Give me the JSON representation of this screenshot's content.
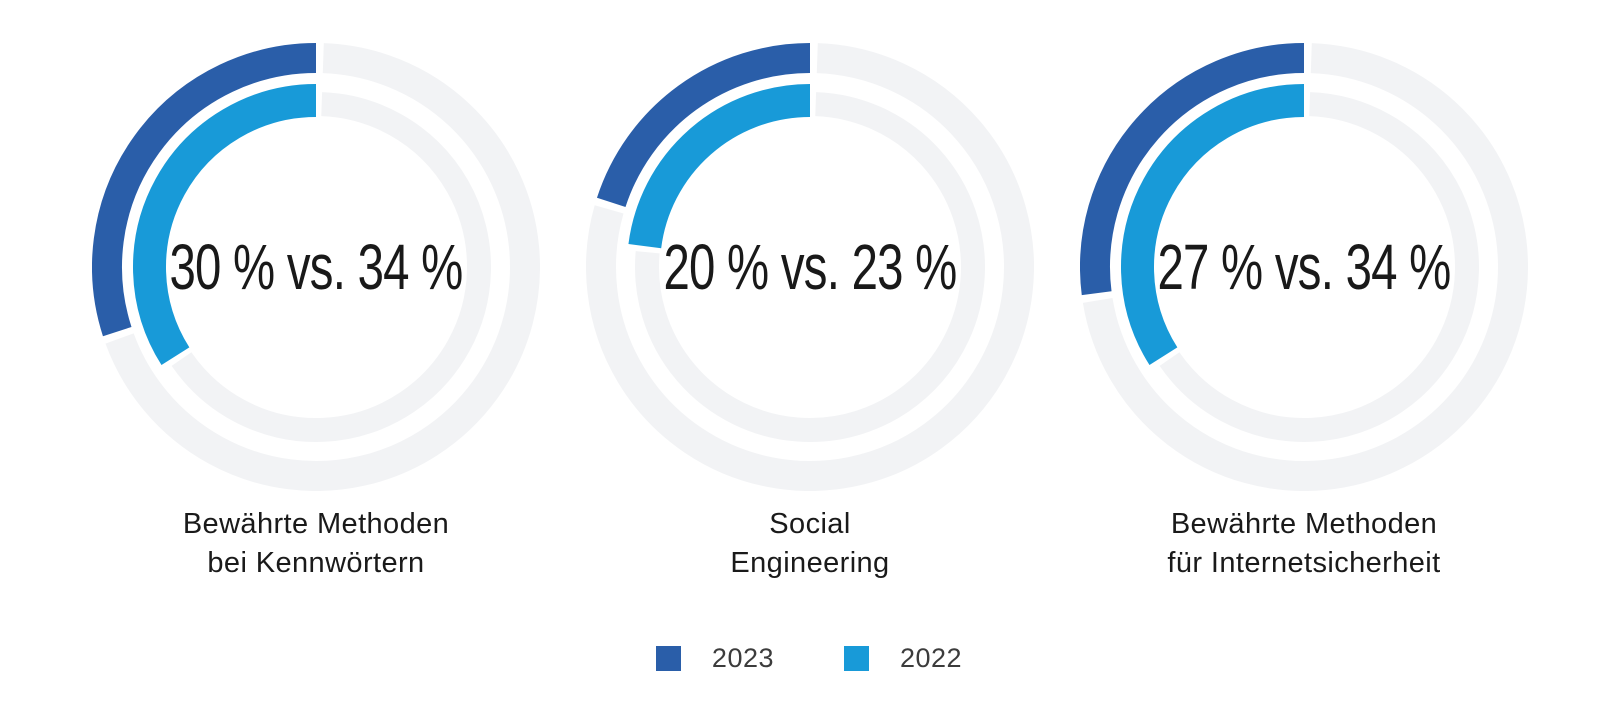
{
  "page": {
    "background": "#ffffff"
  },
  "chart_data": {
    "type": "pie",
    "subtype": "nested-donut-comparison",
    "unit": "%",
    "track_color": "#f2f3f5",
    "legend_position": "bottom-center",
    "arc_start": "top",
    "arc_direction": "counterclockwise",
    "legend": [
      {
        "label": "2023",
        "color": "#2a5ea9",
        "ring": "outer"
      },
      {
        "label": "2022",
        "color": "#189ad8",
        "ring": "inner"
      }
    ],
    "charts": [
      {
        "center_label": "30 % vs. 34 %",
        "caption_line1": "Bewährte Methoden",
        "caption_line2": "bei Kennwörtern",
        "series": [
          {
            "name": "2023",
            "value": 30,
            "ring": "outer"
          },
          {
            "name": "2022",
            "value": 34,
            "ring": "inner"
          }
        ]
      },
      {
        "center_label": "20 % vs. 23 %",
        "caption_line1": "Social",
        "caption_line2": "Engineering",
        "series": [
          {
            "name": "2023",
            "value": 20,
            "ring": "outer"
          },
          {
            "name": "2022",
            "value": 23,
            "ring": "inner"
          }
        ]
      },
      {
        "center_label": "27 % vs. 34 %",
        "caption_line1": "Bewährte Methoden",
        "caption_line2": "für Internetsicherheit",
        "series": [
          {
            "name": "2023",
            "value": 27,
            "ring": "outer"
          },
          {
            "name": "2022",
            "value": 34,
            "ring": "inner"
          }
        ]
      }
    ]
  }
}
